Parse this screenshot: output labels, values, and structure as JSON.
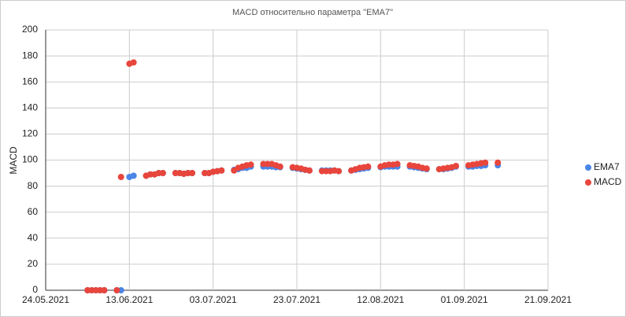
{
  "chart_data": {
    "type": "scatter",
    "title": "MACD относительно параметра \"EMA7\"",
    "y_label": "MACD",
    "x": [
      "03.06.2021",
      "04.06.2021",
      "05.06.2021",
      "06.06.2021",
      "07.06.2021",
      "10.06.2021",
      "11.06.2021",
      "13.06.2021",
      "14.06.2021",
      "17.06.2021",
      "18.06.2021",
      "19.06.2021",
      "20.06.2021",
      "21.06.2021",
      "24.06.2021",
      "25.06.2021",
      "26.06.2021",
      "27.06.2021",
      "28.06.2021",
      "01.07.2021",
      "02.07.2021",
      "03.07.2021",
      "04.07.2021",
      "05.07.2021",
      "08.07.2021",
      "09.07.2021",
      "10.07.2021",
      "11.07.2021",
      "12.07.2021",
      "15.07.2021",
      "16.07.2021",
      "17.07.2021",
      "18.07.2021",
      "19.07.2021",
      "22.07.2021",
      "23.07.2021",
      "24.07.2021",
      "25.07.2021",
      "26.07.2021",
      "29.07.2021",
      "30.07.2021",
      "31.07.2021",
      "01.08.2021",
      "02.08.2021",
      "05.08.2021",
      "06.08.2021",
      "07.08.2021",
      "08.08.2021",
      "09.08.2021",
      "12.08.2021",
      "13.08.2021",
      "14.08.2021",
      "15.08.2021",
      "16.08.2021",
      "19.08.2021",
      "20.08.2021",
      "21.08.2021",
      "22.08.2021",
      "23.08.2021",
      "26.08.2021",
      "27.08.2021",
      "28.08.2021",
      "29.08.2021",
      "30.08.2021",
      "02.09.2021",
      "03.09.2021",
      "04.09.2021",
      "05.09.2021",
      "06.09.2021",
      "09.09.2021"
    ],
    "series": [
      {
        "name": "EMA7",
        "color": "#4a86e8",
        "values": [
          0,
          0,
          0,
          0,
          0,
          0,
          0,
          87,
          88,
          88,
          89,
          89,
          90,
          90,
          90,
          90,
          89.5,
          90,
          90,
          90,
          90,
          91,
          91.5,
          92,
          92.5,
          93,
          94,
          94,
          95,
          95,
          95,
          95,
          94.5,
          94.5,
          94,
          93.5,
          93,
          92.5,
          92,
          92,
          92,
          92,
          92,
          91.5,
          92,
          92.5,
          93,
          93.5,
          94,
          94.5,
          95,
          95,
          95,
          95,
          95,
          94.5,
          94,
          93.5,
          93,
          93,
          93,
          93.5,
          94,
          95,
          95,
          95,
          95.5,
          95.5,
          96,
          96
        ]
      },
      {
        "name": "MACD",
        "color": "#e8453c",
        "values": [
          0,
          0,
          0,
          0,
          0,
          0,
          87,
          174,
          175,
          88,
          89,
          89,
          90,
          90,
          90,
          90,
          89.5,
          90,
          90,
          90,
          90,
          91,
          91.5,
          92,
          92,
          94,
          95,
          96,
          96.5,
          97,
          97,
          97,
          96,
          95,
          94.5,
          94,
          93.5,
          92.5,
          92,
          91.5,
          91.5,
          91.5,
          92,
          91.5,
          92,
          93,
          94,
          94.5,
          95,
          95,
          96,
          96.5,
          96.5,
          97,
          96,
          95.5,
          95,
          94,
          93.5,
          93,
          93.5,
          94,
          94.5,
          95.5,
          96,
          96.5,
          97,
          97.5,
          98,
          98
        ]
      }
    ],
    "xlim": [
      "24.05.2021",
      "21.09.2021"
    ],
    "xticks": [
      "24.05.2021",
      "13.06.2021",
      "03.07.2021",
      "23.07.2021",
      "12.08.2021",
      "01.09.2021",
      "21.09.2021"
    ],
    "ylim": [
      0,
      200
    ],
    "yticks": [
      0,
      20,
      40,
      60,
      80,
      100,
      120,
      140,
      160,
      180,
      200
    ],
    "grid": true,
    "legend": "right"
  }
}
